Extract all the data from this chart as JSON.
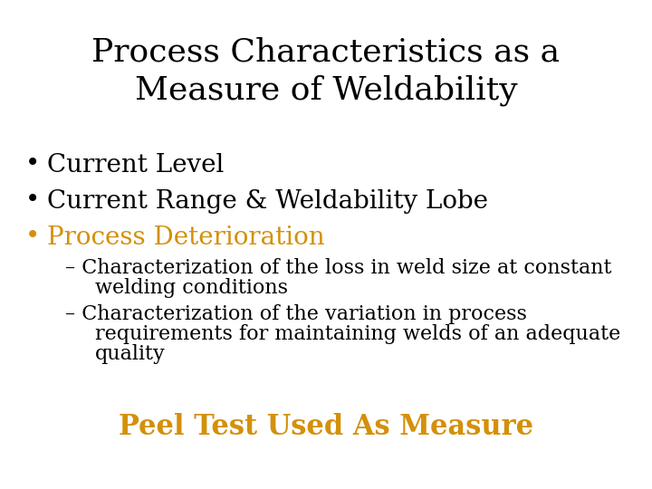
{
  "title_line1": "Process Characteristics as a",
  "title_line2": "Measure of Weldability",
  "title_color": "#000000",
  "title_fontsize": 26,
  "bullet1": "Current Level",
  "bullet2": "Current Range & Weldability Lobe",
  "bullet3": "Process Deterioration",
  "bullet_color_black": "#000000",
  "bullet_color_orange": "#D4900A",
  "sub1_line1": "– Characterization of the loss in weld size at constant",
  "sub1_line2": "welding conditions",
  "sub2_line1": "– Characterization of the variation in process",
  "sub2_line2": "requirements for maintaining welds of an adequate",
  "sub2_line3": "quality",
  "sub_color": "#000000",
  "footer": "Peel Test Used As Measure",
  "footer_color": "#D4900A",
  "background_color": "#FFFFFF",
  "bullet_fontsize": 20,
  "sub_fontsize": 16,
  "footer_fontsize": 22
}
